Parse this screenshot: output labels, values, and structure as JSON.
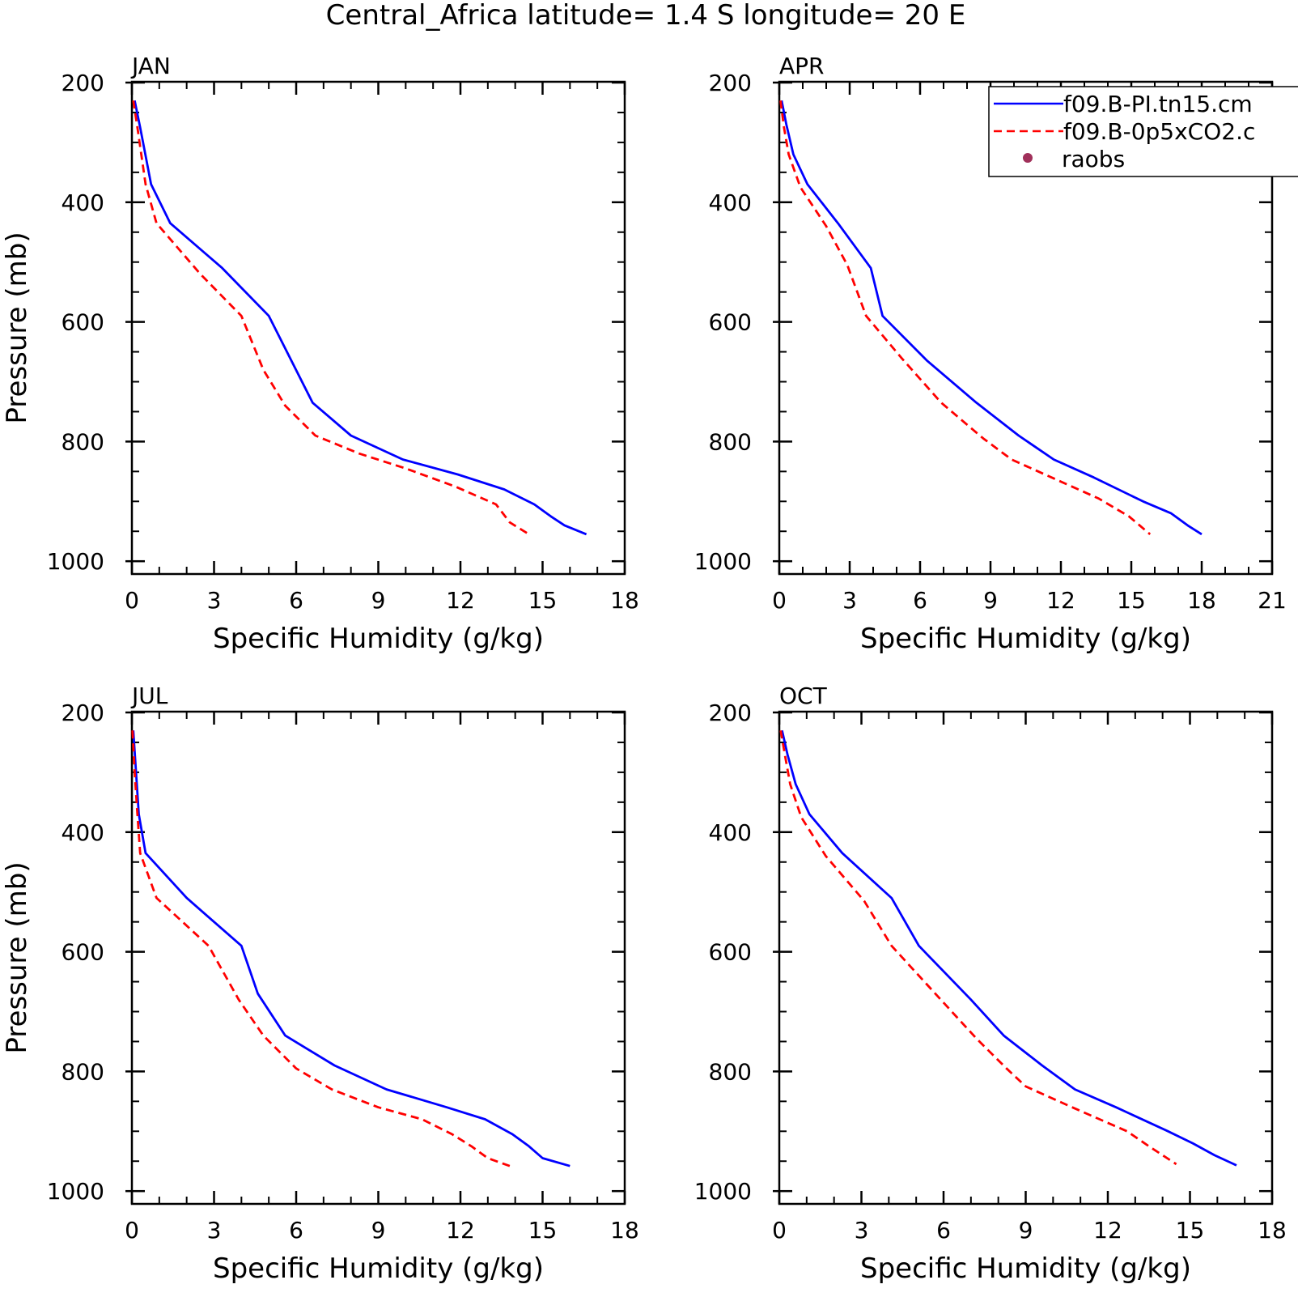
{
  "title": "Central_Africa  latitude= 1.4 S longitude= 20 E",
  "legend": {
    "entries": [
      {
        "label": "f09.B-PI.tn15.cm",
        "color": "#0000ff",
        "style": "solid"
      },
      {
        "label": "f09.B-0p5xCO2.c",
        "color": "#ff0000",
        "style": "dashed"
      },
      {
        "label": "raobs",
        "color": "#a0305a",
        "style": "marker"
      }
    ]
  },
  "chart_data": [
    {
      "type": "line",
      "title": "JAN",
      "xlabel": "Specific Humidity (g/kg)",
      "ylabel": "Pressure (mb)",
      "xlim": [
        0,
        18
      ],
      "ylim": [
        1000,
        200
      ],
      "xticks": [
        "0",
        "3",
        "6",
        "9",
        "12",
        "15",
        "18"
      ],
      "yticks": [
        "200",
        "400",
        "600",
        "800",
        "1000"
      ],
      "series": [
        {
          "name": "f09.B-PI.tn15.cm",
          "color": "#0000ff",
          "dash": false,
          "x": [
            0.1,
            0.3,
            0.7,
            1.4,
            3.3,
            5.0,
            6.6,
            8.0,
            9.9,
            11.9,
            13.6,
            14.7,
            15.3,
            15.8,
            16.6
          ],
          "y": [
            230,
            275,
            370,
            435,
            510,
            590,
            735,
            790,
            830,
            855,
            880,
            905,
            925,
            940,
            955
          ]
        },
        {
          "name": "f09.B-0p5xCO2.c",
          "color": "#ff0000",
          "dash": true,
          "x": [
            0.05,
            0.2,
            0.5,
            0.9,
            2.5,
            4.0,
            4.8,
            5.6,
            6.7,
            8.3,
            10.0,
            11.8,
            13.3,
            13.8,
            14.5
          ],
          "y": [
            230,
            275,
            370,
            435,
            520,
            590,
            680,
            740,
            790,
            820,
            845,
            875,
            905,
            935,
            955
          ]
        }
      ]
    },
    {
      "type": "line",
      "title": "APR",
      "xlabel": "Specific Humidity (g/kg)",
      "ylabel": "",
      "xlim": [
        0,
        21
      ],
      "ylim": [
        1000,
        200
      ],
      "xticks": [
        "0",
        "3",
        "6",
        "9",
        "12",
        "15",
        "18",
        "21"
      ],
      "yticks": [
        "200",
        "400",
        "600",
        "800",
        "1000"
      ],
      "series": [
        {
          "name": "f09.B-PI.tn15.cm",
          "color": "#0000ff",
          "dash": false,
          "x": [
            0.1,
            0.3,
            0.6,
            1.2,
            2.5,
            3.9,
            4.4,
            6.3,
            8.4,
            10.2,
            11.7,
            13.4,
            15.5,
            16.7,
            17.4,
            18.0
          ],
          "y": [
            230,
            270,
            320,
            370,
            435,
            510,
            590,
            665,
            735,
            790,
            830,
            860,
            900,
            920,
            940,
            955
          ]
        },
        {
          "name": "f09.B-0p5xCO2.c",
          "color": "#ff0000",
          "dash": true,
          "x": [
            0.05,
            0.2,
            0.4,
            0.9,
            2.0,
            2.9,
            3.7,
            5.2,
            6.9,
            8.7,
            9.9,
            11.6,
            13.6,
            14.9,
            15.8
          ],
          "y": [
            230,
            275,
            320,
            375,
            440,
            505,
            590,
            660,
            735,
            795,
            830,
            860,
            895,
            925,
            955
          ]
        }
      ]
    },
    {
      "type": "line",
      "title": "JUL",
      "xlabel": "Specific Humidity (g/kg)",
      "ylabel": "Pressure (mb)",
      "xlim": [
        0,
        18
      ],
      "ylim": [
        1000,
        200
      ],
      "xticks": [
        "0",
        "3",
        "6",
        "9",
        "12",
        "15",
        "18"
      ],
      "yticks": [
        "200",
        "400",
        "600",
        "800",
        "1000"
      ],
      "series": [
        {
          "name": "f09.B-PI.tn15.cm",
          "color": "#0000ff",
          "dash": false,
          "x": [
            0.05,
            0.15,
            0.25,
            0.5,
            2.0,
            4.0,
            4.6,
            5.6,
            7.4,
            9.3,
            11.5,
            12.9,
            13.9,
            14.5,
            15.0,
            16.0
          ],
          "y": [
            230,
            300,
            370,
            435,
            510,
            590,
            670,
            740,
            790,
            830,
            860,
            880,
            905,
            925,
            945,
            958
          ]
        },
        {
          "name": "f09.B-0p5xCO2.c",
          "color": "#ff0000",
          "dash": true,
          "x": [
            0.02,
            0.1,
            0.2,
            0.3,
            0.9,
            2.8,
            3.9,
            4.8,
            6.0,
            7.3,
            9.0,
            10.6,
            11.7,
            12.4,
            13.0,
            13.8
          ],
          "y": [
            230,
            300,
            370,
            435,
            510,
            590,
            680,
            740,
            795,
            830,
            860,
            880,
            905,
            925,
            945,
            958
          ]
        }
      ]
    },
    {
      "type": "line",
      "title": "OCT",
      "xlabel": "Specific Humidity (g/kg)",
      "ylabel": "",
      "xlim": [
        0,
        18
      ],
      "ylim": [
        1000,
        200
      ],
      "xticks": [
        "0",
        "3",
        "6",
        "9",
        "12",
        "15",
        "18"
      ],
      "yticks": [
        "200",
        "400",
        "600",
        "800",
        "1000"
      ],
      "series": [
        {
          "name": "f09.B-PI.tn15.cm",
          "color": "#0000ff",
          "dash": false,
          "x": [
            0.1,
            0.3,
            0.6,
            1.1,
            2.3,
            4.1,
            5.1,
            7.0,
            8.2,
            9.6,
            10.8,
            12.3,
            14.2,
            15.1,
            15.9,
            16.7
          ],
          "y": [
            230,
            270,
            320,
            370,
            435,
            510,
            590,
            680,
            740,
            790,
            830,
            860,
            900,
            920,
            940,
            957
          ]
        },
        {
          "name": "f09.B-0p5xCO2.c",
          "color": "#ff0000",
          "dash": true,
          "x": [
            0.05,
            0.2,
            0.4,
            0.8,
            1.7,
            3.1,
            4.1,
            5.7,
            7.2,
            8.3,
            9.0,
            10.7,
            12.7,
            13.5,
            14.5
          ],
          "y": [
            230,
            270,
            320,
            375,
            440,
            515,
            590,
            670,
            745,
            795,
            825,
            860,
            900,
            925,
            955
          ]
        }
      ]
    }
  ]
}
